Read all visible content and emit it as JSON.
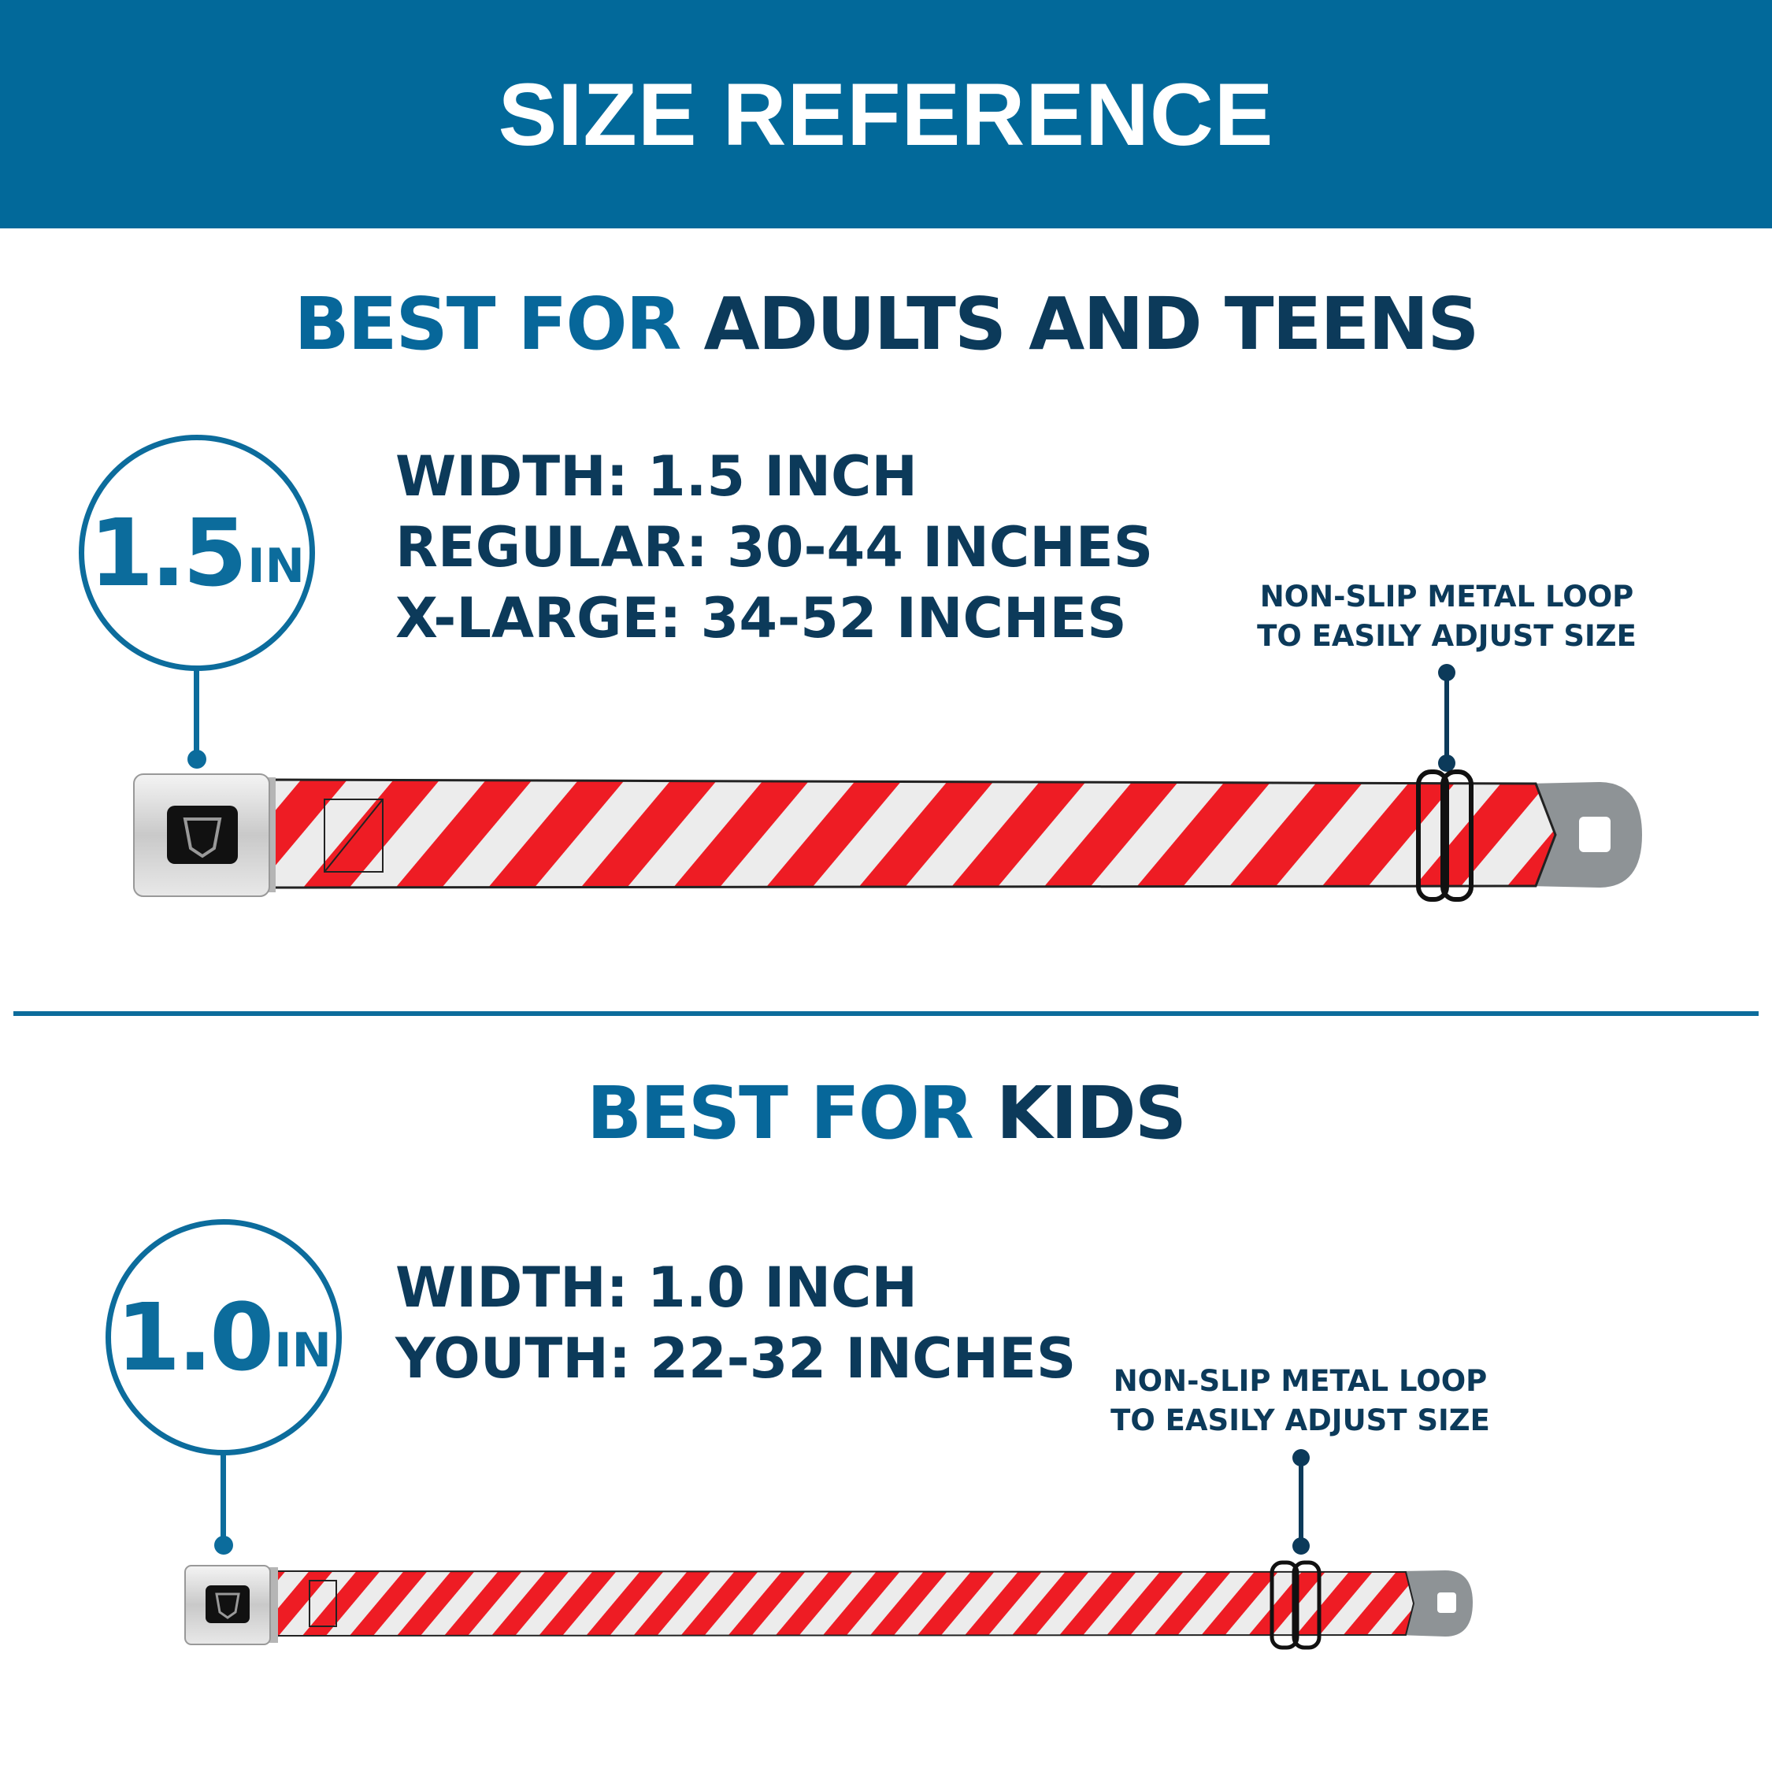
{
  "header": {
    "title": "SIZE REFERENCE",
    "background": "#02699a"
  },
  "colors": {
    "accent_blue": "#07679a",
    "navy": "#0c3a5a",
    "stripe_red": "#ee1c24",
    "stripe_white": "#eeeeee"
  },
  "sections": [
    {
      "heading_highlight": "BEST FOR",
      "heading_rest": "ADULTS AND TEENS",
      "badge_number": "1.5",
      "badge_unit": "IN",
      "specs": [
        "WIDTH: 1.5 INCH",
        "REGULAR: 30-44 INCHES",
        "X-LARGE: 34-52 INCHES"
      ],
      "note_lines": [
        "NON-SLIP METAL LOOP",
        "TO EASILY ADJUST SIZE"
      ],
      "belt_icon": "seatbelt-buckle-belt-candy-stripe"
    },
    {
      "heading_highlight": "BEST FOR",
      "heading_rest": "KIDS",
      "badge_number": "1.0",
      "badge_unit": "IN",
      "specs": [
        "WIDTH: 1.0 INCH",
        "YOUTH: 22-32 INCHES"
      ],
      "note_lines": [
        "NON-SLIP METAL LOOP",
        "TO EASILY ADJUST SIZE"
      ],
      "belt_icon": "seatbelt-buckle-belt-candy-stripe"
    }
  ]
}
